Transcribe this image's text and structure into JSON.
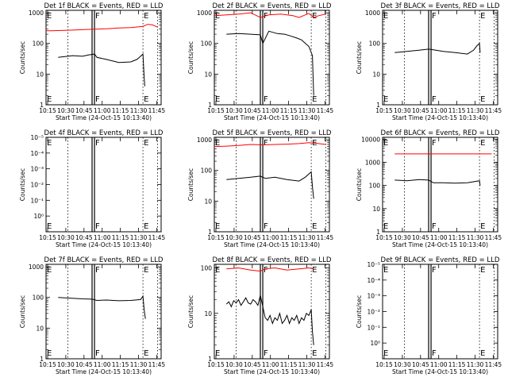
{
  "chart_data": [
    {
      "type": "line",
      "title": "Det 1f BLACK = Events, RED = LLD",
      "ylabel": "Counts/sec",
      "xlabel": "Start Time (24-Oct-15 10:13:40)",
      "x_ticks": [
        "10:15",
        "10:30",
        "10:45",
        "11:00",
        "11:15",
        "11:30",
        "11:45"
      ],
      "y_scale": "log",
      "y_ticks": [
        "1",
        "10",
        "100",
        "1000"
      ],
      "ylim": [
        1,
        1200
      ],
      "xlim_minutes": [
        0,
        95
      ],
      "vlines_minutes": [
        18,
        38,
        40,
        80,
        92
      ],
      "markers": [
        {
          "label": "E",
          "x_minutes": 0
        },
        {
          "label": "F",
          "x_minutes": 40
        },
        {
          "label": "E",
          "x_minutes": 80
        }
      ],
      "series": [
        {
          "color": "#ff0000",
          "x": [
            0,
            5,
            20,
            40,
            50,
            60,
            70,
            80,
            84,
            88,
            92
          ],
          "y": [
            260,
            260,
            270,
            290,
            300,
            320,
            330,
            360,
            420,
            400,
            340
          ]
        },
        {
          "color": "#000000",
          "x": [
            10,
            15,
            22,
            30,
            35,
            40,
            42,
            50,
            60,
            70,
            75,
            78,
            80,
            81,
            81.5
          ],
          "y": [
            35,
            37,
            40,
            38,
            42,
            45,
            35,
            30,
            24,
            25,
            30,
            38,
            45,
            8,
            4
          ]
        }
      ]
    },
    {
      "type": "line",
      "title": "Det 2f BLACK = Events, RED = LLD",
      "ylabel": "Counts/sec",
      "xlabel": "Start Time (24-Oct-15 10:13:40)",
      "x_ticks": [
        "10:15",
        "10:30",
        "10:45",
        "11:00",
        "11:15",
        "11:30",
        "11:45"
      ],
      "y_scale": "log",
      "y_ticks": [
        "1",
        "10",
        "100",
        "1000"
      ],
      "ylim": [
        1,
        1200
      ],
      "xlim_minutes": [
        0,
        95
      ],
      "vlines_minutes": [
        18,
        38,
        40,
        80,
        92
      ],
      "markers": [
        {
          "label": "E",
          "x_minutes": 0
        },
        {
          "label": "F",
          "x_minutes": 40
        },
        {
          "label": "E",
          "x_minutes": 80
        }
      ],
      "series": [
        {
          "color": "#ff0000",
          "x": [
            0,
            10,
            20,
            30,
            38,
            45,
            55,
            65,
            70,
            78,
            82,
            86,
            92
          ],
          "y": [
            800,
            850,
            900,
            1000,
            700,
            850,
            900,
            800,
            700,
            950,
            700,
            800,
            900
          ]
        },
        {
          "color": "#000000",
          "x": [
            10,
            20,
            30,
            38,
            40,
            45,
            52,
            58,
            62,
            68,
            72,
            78,
            81,
            82
          ],
          "y": [
            200,
            210,
            200,
            190,
            100,
            250,
            210,
            200,
            180,
            150,
            130,
            80,
            40,
            2
          ]
        }
      ]
    },
    {
      "type": "line",
      "title": "Det 3f BLACK = Events, RED = LLD",
      "ylabel": "Counts/sec",
      "xlabel": "Start Time (24-Oct-15 10:13:40)",
      "x_ticks": [
        "10:15",
        "10:30",
        "10:45",
        "11:00",
        "11:15",
        "11:30",
        "11:45"
      ],
      "y_scale": "log",
      "y_ticks": [
        "1",
        "10",
        "100",
        "1000"
      ],
      "ylim": [
        1,
        1200
      ],
      "xlim_minutes": [
        0,
        95
      ],
      "vlines_minutes": [
        18,
        38,
        40,
        80,
        92
      ],
      "markers": [
        {
          "label": "E",
          "x_minutes": 0
        },
        {
          "label": "F",
          "x_minutes": 40
        },
        {
          "label": "E",
          "x_minutes": 80
        }
      ],
      "series": [
        {
          "color": "#000000",
          "x": [
            10,
            20,
            30,
            38,
            42,
            50,
            60,
            70,
            75,
            78,
            80,
            80.5
          ],
          "y": [
            50,
            55,
            60,
            65,
            62,
            55,
            50,
            45,
            60,
            85,
            100,
            50
          ]
        }
      ]
    },
    {
      "type": "line",
      "title": "Det 4f BLACK = Events, RED = LLD",
      "ylabel": "Counts/sec",
      "xlabel": "Start Time (24-Oct-15 10:13:40)",
      "x_ticks": [
        "10:15",
        "10:30",
        "10:45",
        "11:00",
        "11:15",
        "11:30",
        "11:45"
      ],
      "y_scale": "log",
      "y_ticks": [
        "10⁰",
        "10⁻¹",
        "10⁻²",
        "10⁻³",
        "10⁻⁴",
        "10⁻⁵"
      ],
      "ylim": [
        -1,
        5
      ],
      "xlim_minutes": [
        0,
        95
      ],
      "vlines_minutes": [
        18,
        38,
        40,
        80,
        92
      ],
      "markers": [
        {
          "label": "E",
          "x_minutes": 0
        },
        {
          "label": "F",
          "x_minutes": 40
        },
        {
          "label": "E",
          "x_minutes": 80
        }
      ],
      "series": []
    },
    {
      "type": "line",
      "title": "Det 5f BLACK = Events, RED = LLD",
      "ylabel": "Counts/sec",
      "xlabel": "Start Time (24-Oct-15 10:13:40)",
      "x_ticks": [
        "10:15",
        "10:30",
        "10:45",
        "11:00",
        "11:15",
        "11:30",
        "11:45"
      ],
      "y_scale": "log",
      "y_ticks": [
        "1",
        "10",
        "100",
        "1000"
      ],
      "ylim": [
        1,
        1200
      ],
      "xlim_minutes": [
        0,
        95
      ],
      "vlines_minutes": [
        18,
        38,
        40,
        80,
        92
      ],
      "markers": [
        {
          "label": "E",
          "x_minutes": 0
        },
        {
          "label": "F",
          "x_minutes": 40
        },
        {
          "label": "E",
          "x_minutes": 80
        }
      ],
      "series": [
        {
          "color": "#ff0000",
          "x": [
            0,
            10,
            20,
            30,
            40,
            50,
            60,
            70,
            78,
            82,
            86,
            92
          ],
          "y": [
            600,
            620,
            650,
            700,
            680,
            700,
            720,
            750,
            800,
            780,
            750,
            700
          ]
        },
        {
          "color": "#000000",
          "x": [
            10,
            20,
            30,
            38,
            42,
            50,
            60,
            70,
            75,
            80,
            81,
            82
          ],
          "y": [
            50,
            55,
            60,
            65,
            55,
            60,
            50,
            45,
            60,
            90,
            30,
            12
          ]
        }
      ]
    },
    {
      "type": "line",
      "title": "Det 6f BLACK = Events, RED = LLD",
      "ylabel": "Counts/sec",
      "xlabel": "Start Time (24-Oct-15 10:13:40)",
      "x_ticks": [
        "10:15",
        "10:30",
        "10:45",
        "11:00",
        "11:15",
        "11:30",
        "11:45"
      ],
      "y_scale": "log",
      "y_ticks": [
        "1",
        "10",
        "100",
        "1000",
        "10000"
      ],
      "ylim": [
        1,
        12000
      ],
      "xlim_minutes": [
        0,
        95
      ],
      "vlines_minutes": [
        18,
        38,
        40,
        80,
        92
      ],
      "markers": [
        {
          "label": "E",
          "x_minutes": 0
        },
        {
          "label": "F",
          "x_minutes": 40
        },
        {
          "label": "E",
          "x_minutes": 80
        }
      ],
      "series": [
        {
          "color": "#ff0000",
          "x": [
            10,
            30,
            50,
            70,
            90
          ],
          "y": [
            2300,
            2300,
            2300,
            2300,
            2300
          ]
        },
        {
          "color": "#000000",
          "x": [
            10,
            20,
            30,
            38,
            42,
            50,
            60,
            70,
            80,
            80.5
          ],
          "y": [
            170,
            160,
            180,
            170,
            130,
            130,
            125,
            130,
            160,
            100
          ]
        }
      ]
    },
    {
      "type": "line",
      "title": "Det 7f BLACK = Events, RED = LLD",
      "ylabel": "Counts/sec",
      "xlabel": "Start Time (24-Oct-15 10:13:40)",
      "x_ticks": [
        "10:15",
        "10:30",
        "10:45",
        "11:00",
        "11:15",
        "11:30",
        "11:45"
      ],
      "y_scale": "log",
      "y_ticks": [
        "1",
        "10",
        "100",
        "1000"
      ],
      "ylim": [
        1,
        1200
      ],
      "xlim_minutes": [
        0,
        95
      ],
      "vlines_minutes": [
        18,
        38,
        40,
        80,
        92
      ],
      "markers": [
        {
          "label": "E",
          "x_minutes": 0
        },
        {
          "label": "F",
          "x_minutes": 40
        },
        {
          "label": "E",
          "x_minutes": 80
        }
      ],
      "series": [
        {
          "color": "#000000",
          "x": [
            10,
            20,
            30,
            38,
            42,
            50,
            60,
            70,
            78,
            80,
            81,
            82
          ],
          "y": [
            100,
            95,
            90,
            88,
            80,
            82,
            78,
            80,
            85,
            110,
            40,
            20
          ]
        }
      ]
    },
    {
      "type": "line",
      "title": "Det 8f BLACK = Events, RED = LLD",
      "ylabel": "Counts/sec",
      "xlabel": "Start Time (24-Oct-15 10:13:40)",
      "x_ticks": [
        "10:15",
        "10:30",
        "10:45",
        "11:00",
        "11:15",
        "11:30",
        "11:45"
      ],
      "y_scale": "log",
      "y_ticks": [
        "1",
        "10",
        "100"
      ],
      "ylim": [
        1,
        120
      ],
      "xlim_minutes": [
        0,
        95
      ],
      "vlines_minutes": [
        18,
        38,
        40,
        80,
        92
      ],
      "markers": [
        {
          "label": "E",
          "x_minutes": 0
        },
        {
          "label": "F",
          "x_minutes": 40
        },
        {
          "label": "E",
          "x_minutes": 80
        }
      ],
      "series": [
        {
          "color": "#ff0000",
          "x": [
            10,
            20,
            30,
            38,
            42,
            50,
            60,
            70,
            78,
            82
          ],
          "y": [
            95,
            100,
            90,
            85,
            95,
            100,
            90,
            95,
            100,
            95
          ]
        },
        {
          "color": "#000000",
          "x": [
            10,
            12,
            14,
            16,
            18,
            20,
            22,
            24,
            26,
            28,
            30,
            32,
            34,
            36,
            38,
            42,
            44,
            46,
            48,
            50,
            52,
            54,
            56,
            58,
            60,
            62,
            64,
            66,
            68,
            70,
            72,
            74,
            76,
            78,
            80,
            81,
            82
          ],
          "y": [
            16,
            18,
            14,
            19,
            17,
            20,
            15,
            18,
            22,
            17,
            16,
            20,
            18,
            15,
            25,
            8,
            7,
            9,
            6,
            8,
            7,
            10,
            6,
            7,
            9,
            6,
            8,
            7,
            9,
            6,
            8,
            7,
            10,
            9,
            12,
            4,
            2
          ]
        }
      ]
    },
    {
      "type": "line",
      "title": "Det 9f BLACK = Events, RED = LLD",
      "ylabel": "Counts/sec",
      "xlabel": "Start Time (24-Oct-15 10:13:40)",
      "x_ticks": [
        "10:15",
        "10:30",
        "10:45",
        "11:00",
        "11:15",
        "11:30",
        "11:45"
      ],
      "y_scale": "log",
      "y_ticks": [
        "10⁰",
        "10⁻¹",
        "10⁻²",
        "10⁻³",
        "10⁻⁴",
        "10⁻⁵"
      ],
      "ylim": [
        -1,
        5
      ],
      "xlim_minutes": [
        0,
        95
      ],
      "vlines_minutes": [
        18,
        38,
        40,
        80,
        92
      ],
      "markers": [
        {
          "label": "E",
          "x_minutes": 0
        },
        {
          "label": "F",
          "x_minutes": 40
        },
        {
          "label": "E",
          "x_minutes": 80
        }
      ],
      "series": []
    }
  ]
}
